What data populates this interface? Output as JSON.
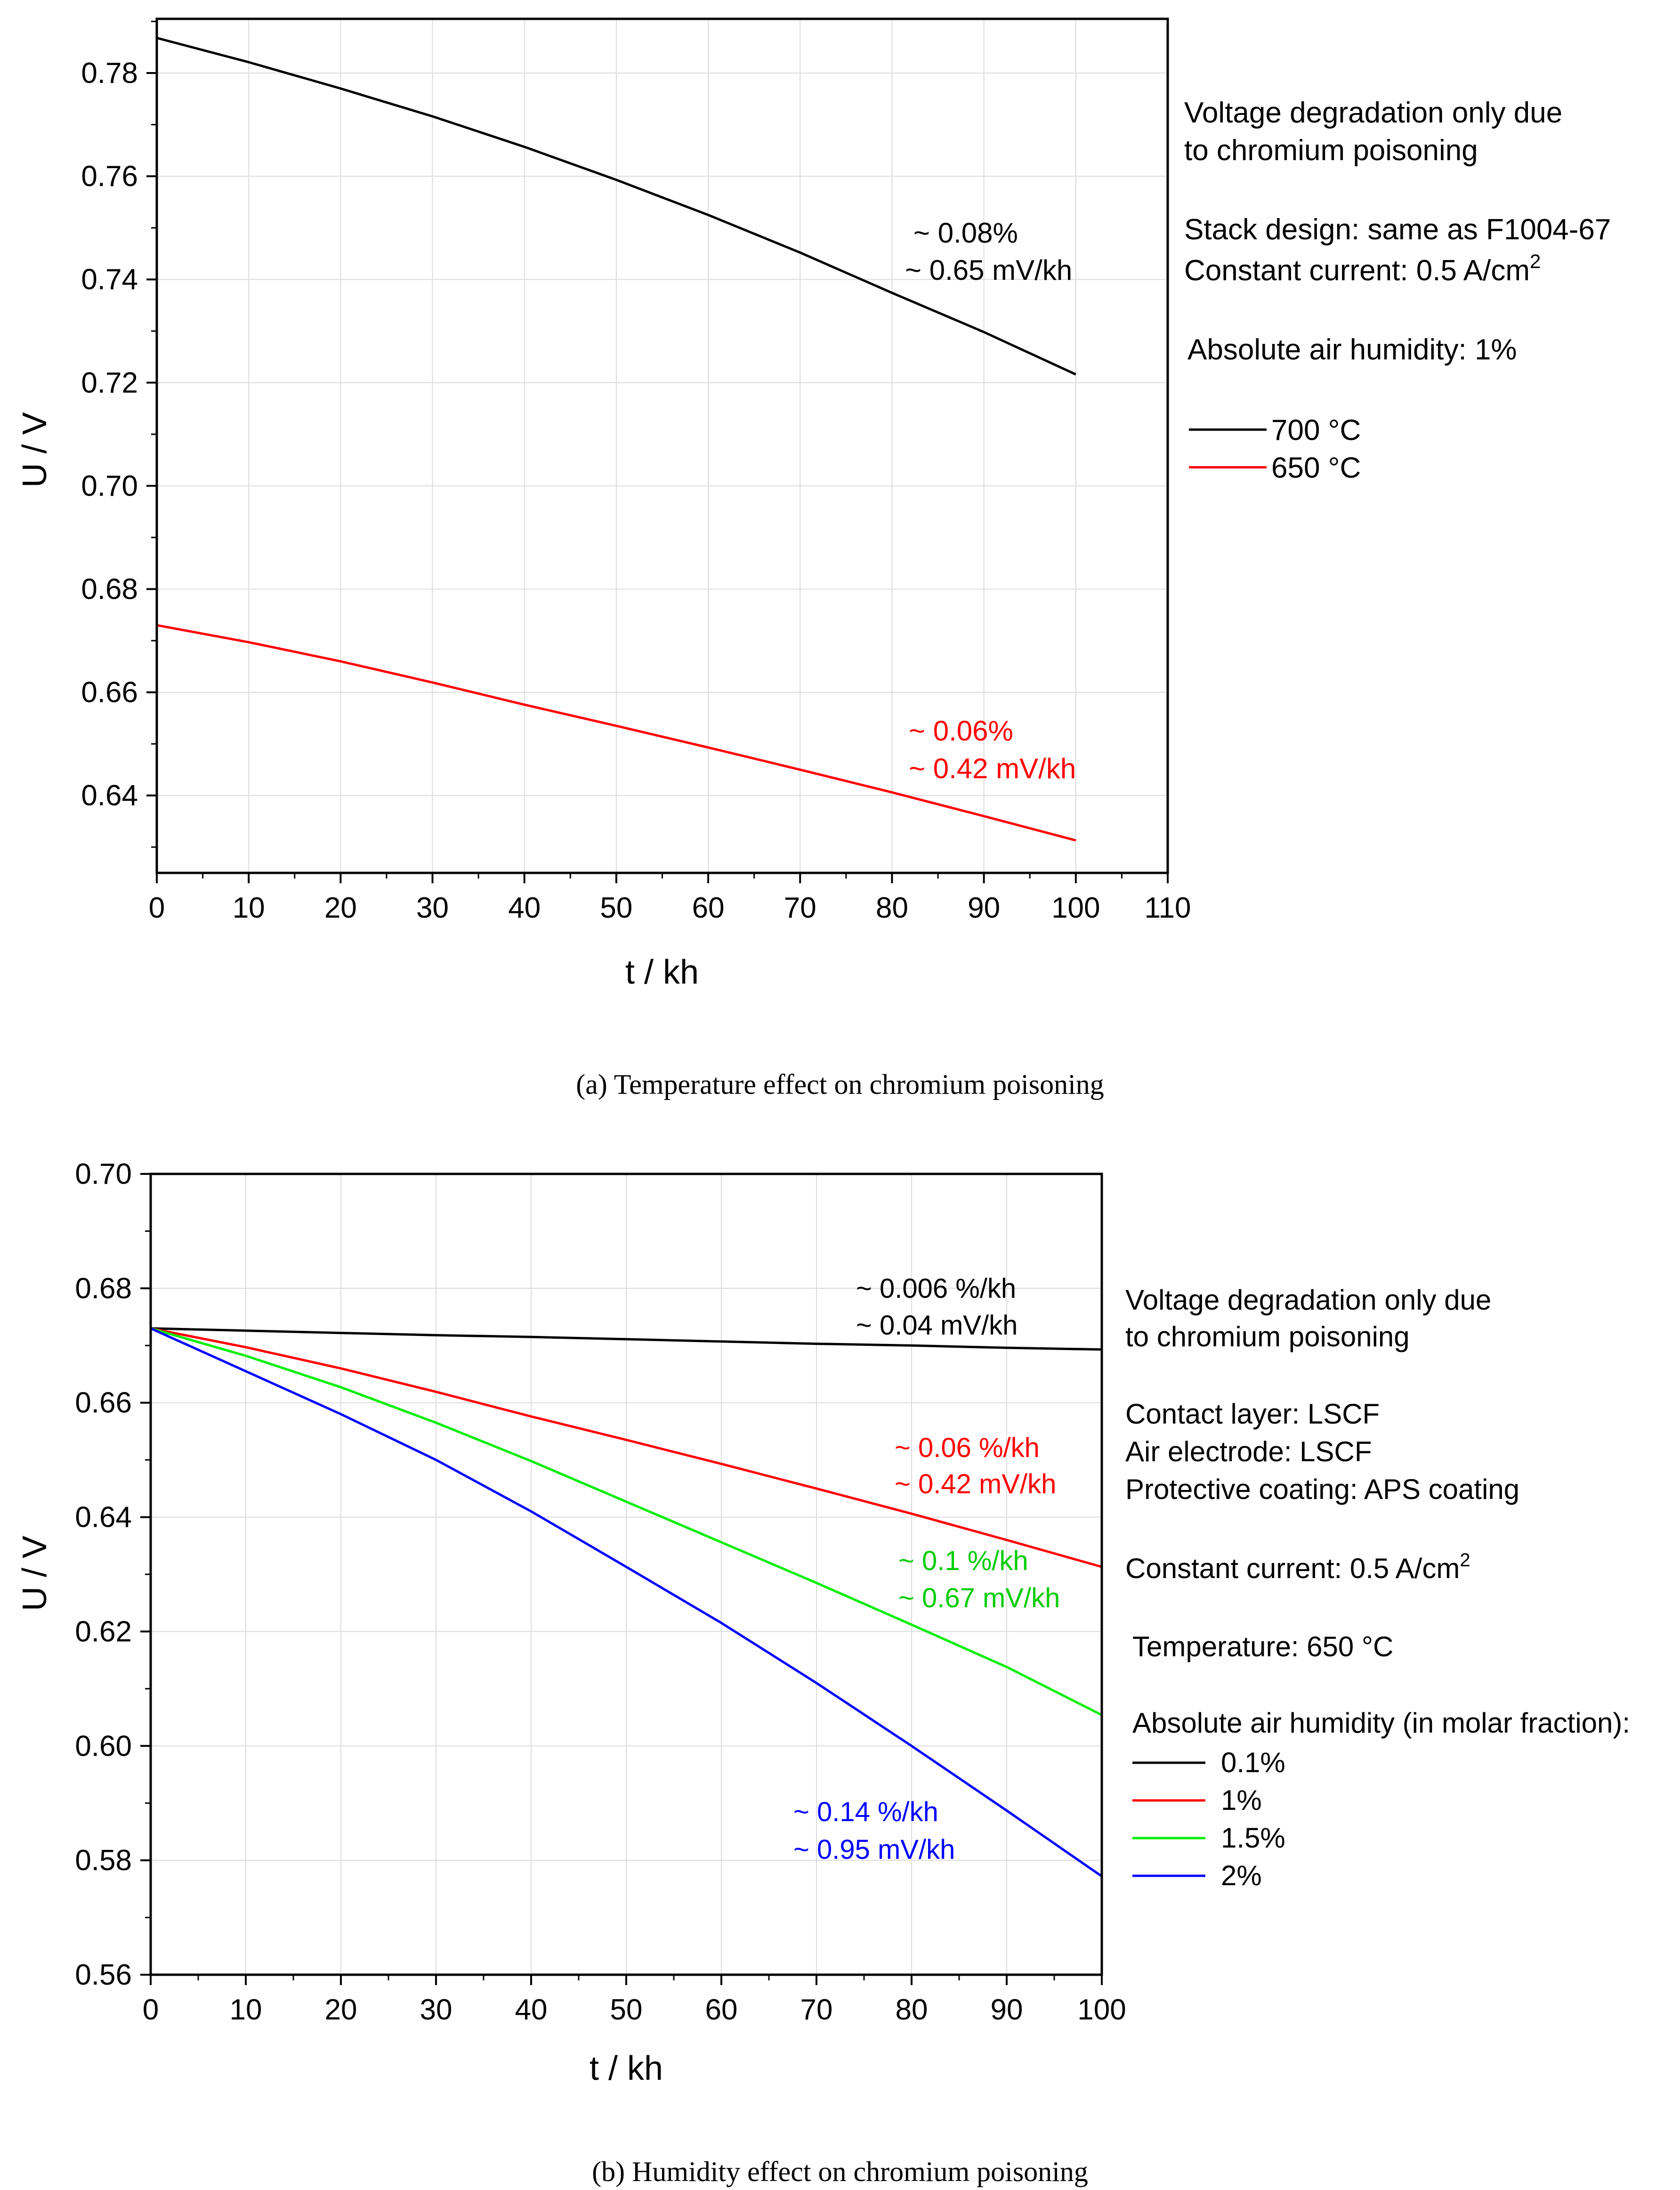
{
  "chart_data": [
    {
      "type": "line",
      "title": "",
      "xlabel": "t / kh",
      "ylabel": "U / V",
      "xlim": [
        0,
        110
      ],
      "ylim": [
        0.625,
        0.7905
      ],
      "grid": true,
      "xticks": [
        0,
        10,
        20,
        30,
        40,
        50,
        60,
        70,
        80,
        90,
        100,
        110
      ],
      "xtick_labels": [
        "0",
        "10",
        "20",
        "30",
        "40",
        "50",
        "60",
        "70",
        "80",
        "90",
        "100",
        "110"
      ],
      "yticks": [
        0.64,
        0.66,
        0.68,
        0.7,
        0.72,
        0.74,
        0.76,
        0.78
      ],
      "ytick_labels": [
        "0.64",
        "0.66",
        "0.68",
        "0.70",
        "0.72",
        "0.74",
        "0.76",
        "0.78"
      ],
      "x": [
        0,
        10,
        20,
        30,
        40,
        50,
        60,
        70,
        80,
        90,
        100
      ],
      "series": [
        {
          "name": "700 °C",
          "color": "#000000",
          "values": [
            0.7868,
            0.7821,
            0.777,
            0.7716,
            0.7657,
            0.7593,
            0.7525,
            0.7452,
            0.7374,
            0.7298,
            0.7216
          ]
        },
        {
          "name": "650 °C",
          "color": "#ff0000",
          "values": [
            0.673,
            0.6697,
            0.666,
            0.6619,
            0.6576,
            0.6535,
            0.6493,
            0.645,
            0.6406,
            0.636,
            0.6313
          ]
        }
      ],
      "annotations": [
        {
          "lines": [
            "~ 0.08%",
            "~ 0.65 mV/kh"
          ],
          "color": "#000000"
        },
        {
          "lines": [
            "~ 0.06%",
            "~ 0.42 mV/kh"
          ],
          "color": "#ff0000"
        }
      ],
      "side_text": [
        "Voltage degradation only due",
        "to chromium poisoning",
        "Stack design: same as F1004-67",
        "Constant current: 0.5 A/cm",
        "Absolute air humidity: 1%"
      ],
      "superscript": "2",
      "legend_title": "",
      "legend_position": "right",
      "caption": "(a)  Temperature effect on chromium poisoning"
    },
    {
      "type": "line",
      "title": "",
      "xlabel": "t / kh",
      "ylabel": "U / V",
      "xlim": [
        0,
        100
      ],
      "ylim": [
        0.56,
        0.7
      ],
      "grid": true,
      "xticks": [
        0,
        10,
        20,
        30,
        40,
        50,
        60,
        70,
        80,
        90,
        100
      ],
      "xtick_labels": [
        "0",
        "10",
        "20",
        "30",
        "40",
        "50",
        "60",
        "70",
        "80",
        "90",
        "100"
      ],
      "yticks": [
        0.56,
        0.58,
        0.6,
        0.62,
        0.64,
        0.66,
        0.68,
        0.7
      ],
      "ytick_labels": [
        "0.56",
        "0.58",
        "0.60",
        "0.62",
        "0.64",
        "0.66",
        "0.68",
        "0.70"
      ],
      "x": [
        0,
        10,
        20,
        30,
        40,
        50,
        60,
        70,
        80,
        90,
        100
      ],
      "series": [
        {
          "name": "0.1%",
          "color": "#000000",
          "values": [
            0.673,
            0.6726,
            0.6722,
            0.6718,
            0.6715,
            0.6711,
            0.6707,
            0.6703,
            0.67,
            0.6696,
            0.6693
          ]
        },
        {
          "name": "1%",
          "color": "#ff0000",
          "values": [
            0.673,
            0.6697,
            0.666,
            0.6619,
            0.6576,
            0.6535,
            0.6493,
            0.645,
            0.6406,
            0.636,
            0.6313
          ]
        },
        {
          "name": "1.5%",
          "color": "#00ee00",
          "values": [
            0.673,
            0.6682,
            0.6627,
            0.6565,
            0.6498,
            0.6427,
            0.6356,
            0.6285,
            0.6212,
            0.6138,
            0.6054
          ]
        },
        {
          "name": "2%",
          "color": "#0000ff",
          "values": [
            0.673,
            0.6655,
            0.658,
            0.65,
            0.641,
            0.6313,
            0.6215,
            0.611,
            0.6,
            0.5887,
            0.5772
          ]
        }
      ],
      "annotations": [
        {
          "lines": [
            "~ 0.006 %/kh",
            "~ 0.04 mV/kh"
          ],
          "color": "#000000"
        },
        {
          "lines": [
            "~ 0.06 %/kh",
            "~ 0.42 mV/kh"
          ],
          "color": "#ff0000"
        },
        {
          "lines": [
            "~ 0.1 %/kh",
            "~ 0.67 mV/kh"
          ],
          "color": "#00cc00"
        },
        {
          "lines": [
            "~ 0.14 %/kh",
            "~ 0.95 mV/kh"
          ],
          "color": "#0000ff"
        }
      ],
      "side_text": [
        "Voltage degradation only due",
        "to chromium poisoning",
        "Contact layer: LSCF",
        "Air electrode: LSCF",
        "Protective coating: APS coating",
        "Constant current: 0.5 A/cm",
        "Temperature: 650 °C",
        "Absolute air humidity (in molar fraction):"
      ],
      "superscript": "2",
      "legend_title": "Absolute air humidity (in molar fraction):",
      "legend_position": "right",
      "caption": "(b)  Humidity effect on chromium poisoning"
    }
  ]
}
